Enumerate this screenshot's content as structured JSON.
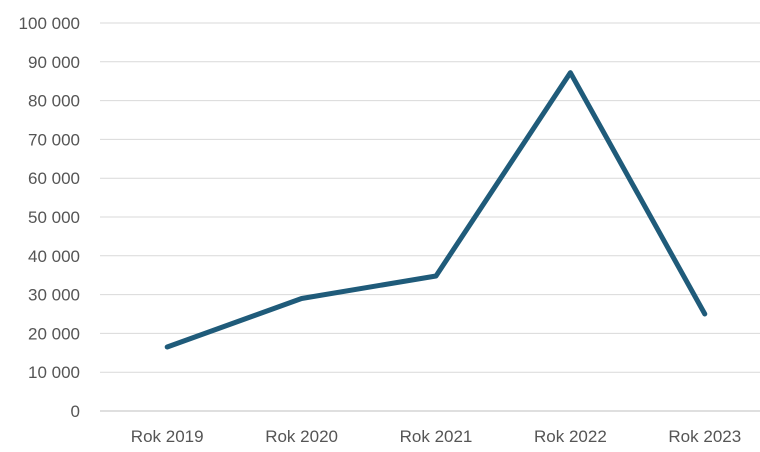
{
  "chart_data": {
    "type": "line",
    "categories": [
      "Rok 2019",
      "Rok 2020",
      "Rok 2021",
      "Rok 2022",
      "Rok 2023"
    ],
    "series": [
      {
        "values": [
          16500,
          29000,
          34800,
          87200,
          25000
        ],
        "color": "#1f5b7a"
      }
    ],
    "ylim": [
      0,
      100000
    ],
    "yticks": [
      0,
      10000,
      20000,
      30000,
      40000,
      50000,
      60000,
      70000,
      80000,
      90000,
      100000
    ],
    "ytick_labels": [
      "0",
      "10 000",
      "20 000",
      "30 000",
      "40 000",
      "50 000",
      "60 000",
      "70 000",
      "80 000",
      "90 000",
      "100 000"
    ],
    "title": "",
    "xlabel": "",
    "ylabel": "",
    "grid": "horizontal",
    "legend": "none",
    "colors": {
      "grid": "#d9d9d9",
      "axis": "#bfbfbf",
      "text": "#555555"
    }
  }
}
